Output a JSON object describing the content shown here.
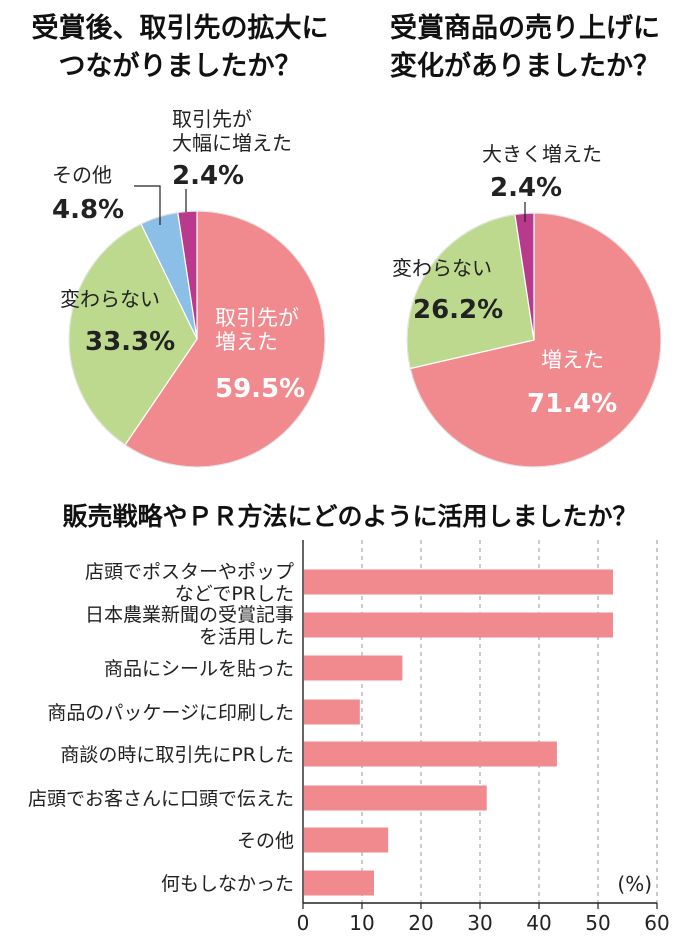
{
  "chart_data": [
    {
      "type": "pie",
      "title": [
        "受賞後、取引先の拡大に",
        "つながりましたか？"
      ],
      "colors": [
        "#f08a8f",
        "#bcd98e",
        "#8cbfe8",
        "#b9398c"
      ],
      "slices": [
        {
          "label_lines": [
            "取引先が",
            "増えた"
          ],
          "pct": "59.5%",
          "value": 59.5
        },
        {
          "label_lines": [
            "変わらない"
          ],
          "pct": "33.3%",
          "value": 33.3
        },
        {
          "label_lines": [
            "その他"
          ],
          "pct": "4.8%",
          "value": 4.8
        },
        {
          "label_lines": [
            "取引先が",
            "大幅に増えた"
          ],
          "pct": "2.4%",
          "value": 2.4
        }
      ]
    },
    {
      "type": "pie",
      "title": [
        "受賞商品の売り上げに",
        "変化がありましたか？"
      ],
      "colors": [
        "#f08a8f",
        "#bcd98e",
        "#b9398c"
      ],
      "slices": [
        {
          "label_lines": [
            "増えた"
          ],
          "pct": "71.4%",
          "value": 71.4
        },
        {
          "label_lines": [
            "変わらない"
          ],
          "pct": "26.2%",
          "value": 26.2
        },
        {
          "label_lines": [
            "大きく増えた"
          ],
          "pct": "2.4%",
          "value": 2.4
        }
      ]
    },
    {
      "type": "bar",
      "orientation": "horizontal",
      "title": "販売戦略やＰＲ方法にどのように活用しましたか？",
      "unit": "(%)",
      "color": "#f08a8f",
      "xlim": [
        0,
        60
      ],
      "xticks": [
        "0",
        "10",
        "20",
        "30",
        "40",
        "50",
        "60"
      ],
      "grid": true,
      "categories": [
        [
          "店頭でポスターやポップ",
          "などでPRした"
        ],
        [
          "日本農業新聞の受賞記事",
          "を活用した"
        ],
        [
          "商品にシールを貼った"
        ],
        [
          "商品のパッケージに印刷した"
        ],
        [
          "商談の時に取引先にPRした"
        ],
        [
          "店頭でお客さんに口頭で伝えた"
        ],
        [
          "その他"
        ],
        [
          "何もしなかった"
        ]
      ],
      "values": [
        52.4,
        52.4,
        16.7,
        9.5,
        42.9,
        31.0,
        14.3,
        11.9
      ]
    }
  ]
}
